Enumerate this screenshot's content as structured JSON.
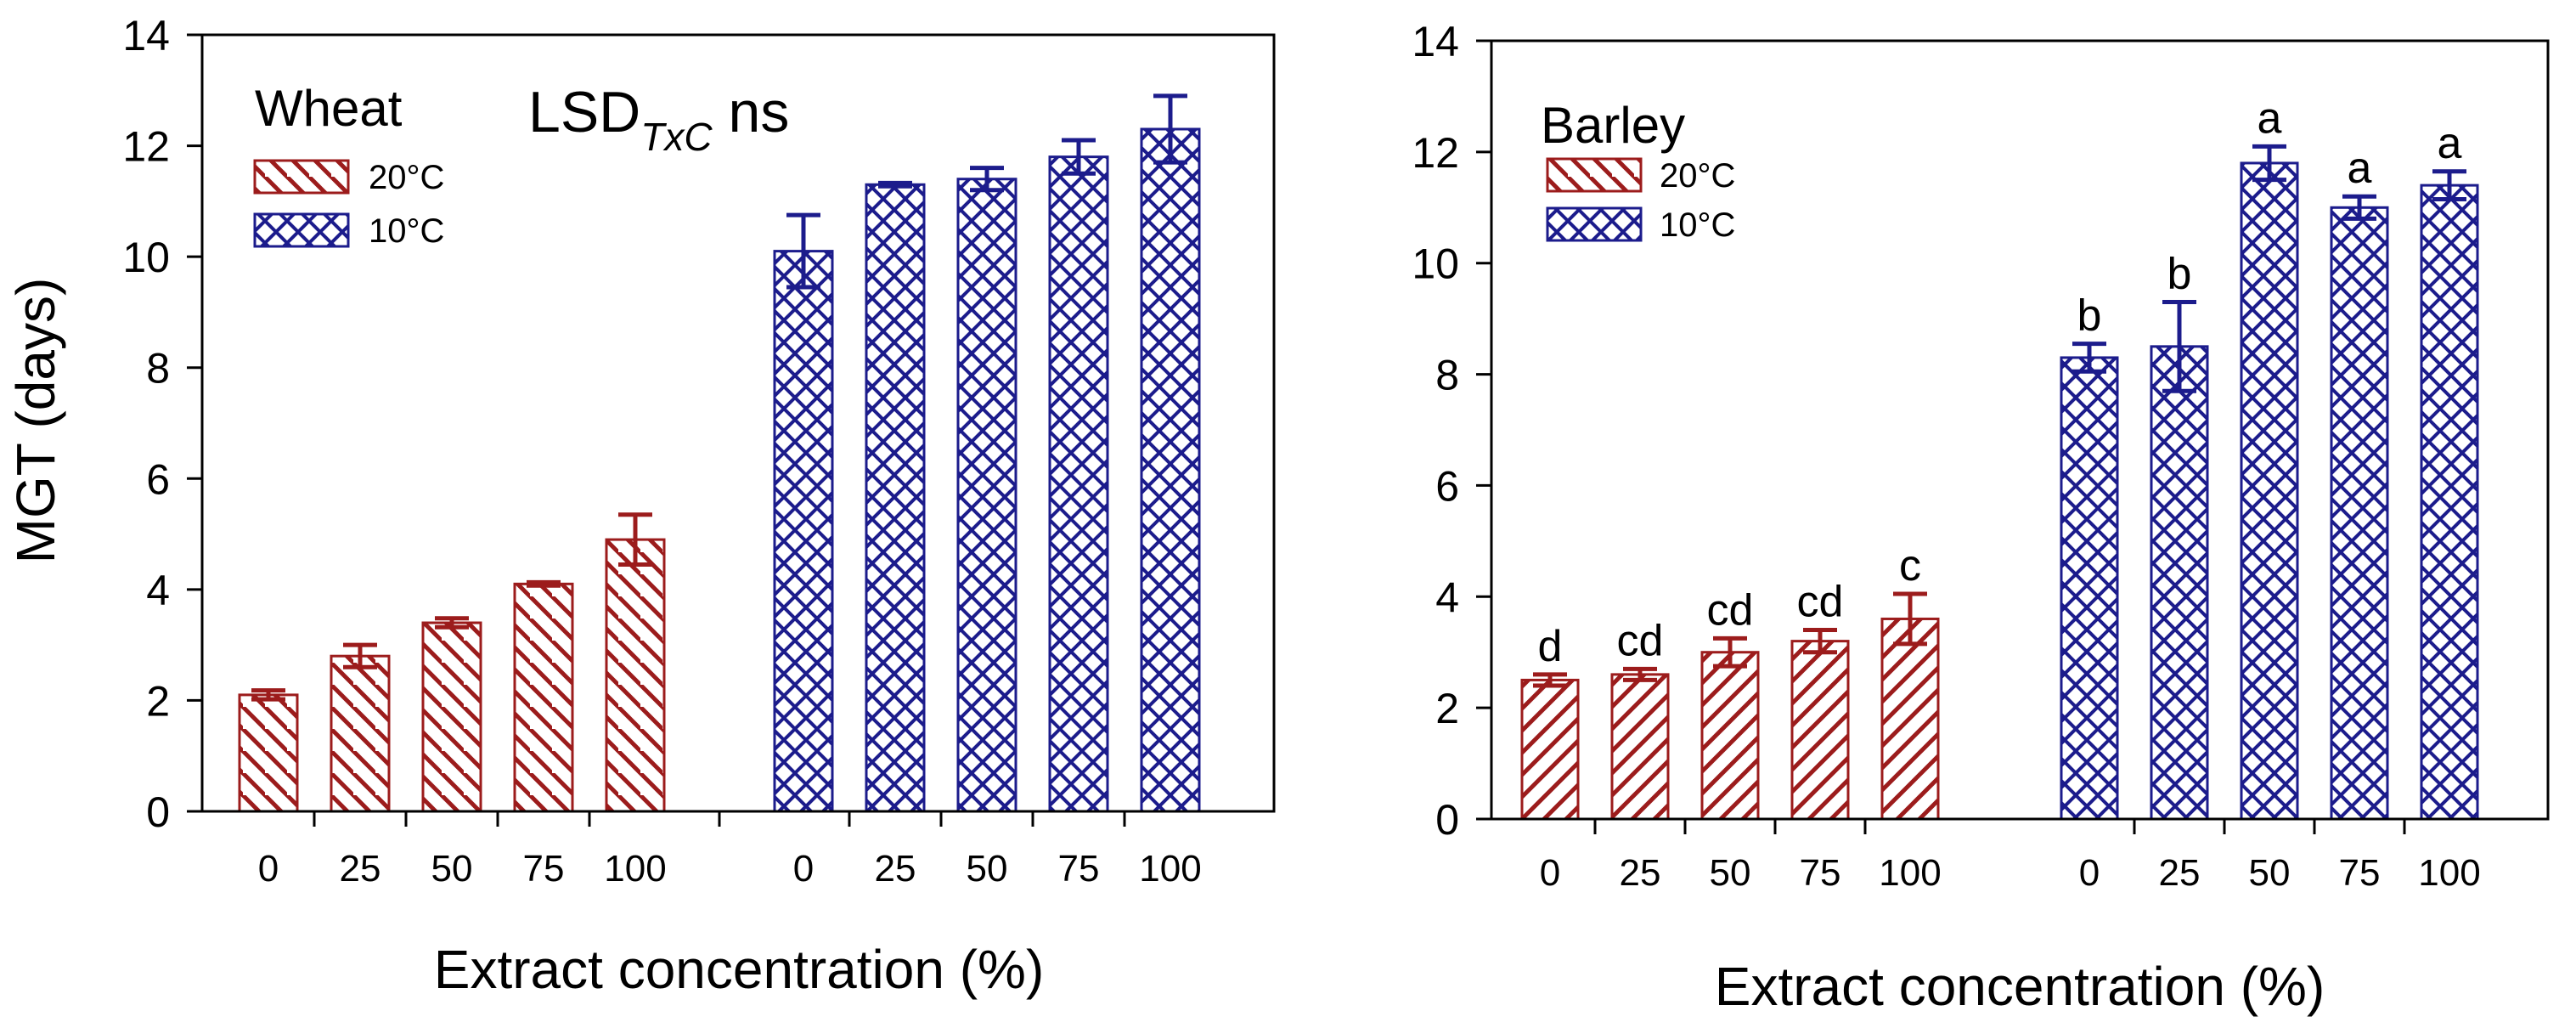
{
  "colors": {
    "warm": "#9c1c1c",
    "cold": "#1c1c8c",
    "axis": "#000000"
  },
  "shared": {
    "ylabel": "MGT (days)",
    "ylim": [
      0,
      14
    ],
    "yticks": [
      "0",
      "2",
      "4",
      "6",
      "8",
      "10",
      "12",
      "14"
    ],
    "legend": [
      "20°C",
      "10°C"
    ]
  },
  "chart_data": [
    {
      "type": "bar",
      "panel": "Wheat",
      "title": "Wheat",
      "annotation": {
        "prefix": "LSD",
        "subscript": "TxC",
        "suffix": " ns"
      },
      "xlabel": "Extract concentration (%)",
      "ylabel": "MGT (days)",
      "ylim": [
        0,
        14
      ],
      "categories": [
        "0",
        "25",
        "50",
        "75",
        "100"
      ],
      "series": [
        {
          "name": "20°C",
          "values": [
            2.1,
            2.8,
            3.4,
            4.1,
            4.9
          ],
          "errors": [
            0.08,
            0.2,
            0.08,
            0.03,
            0.45
          ],
          "letters": []
        },
        {
          "name": "10°C",
          "values": [
            10.1,
            11.3,
            11.4,
            11.8,
            12.3
          ],
          "errors": [
            0.65,
            0.03,
            0.2,
            0.3,
            0.6
          ],
          "letters": []
        }
      ]
    },
    {
      "type": "bar",
      "panel": "Barley",
      "title": "Barley",
      "xlabel": "Extract concentration (%)",
      "ylabel": "",
      "ylim": [
        0,
        14
      ],
      "categories": [
        "0",
        "25",
        "50",
        "75",
        "100"
      ],
      "series": [
        {
          "name": "20°C",
          "values": [
            2.5,
            2.6,
            3.0,
            3.2,
            3.6
          ],
          "errors": [
            0.1,
            0.1,
            0.25,
            0.2,
            0.45
          ],
          "letters": [
            "d",
            "cd",
            "cd",
            "cd",
            "c"
          ]
        },
        {
          "name": "10°C",
          "values": [
            8.3,
            8.5,
            11.8,
            11.0,
            11.4
          ],
          "errors": [
            0.25,
            0.8,
            0.3,
            0.2,
            0.25
          ],
          "letters": [
            "b",
            "b",
            "a",
            "a",
            "a"
          ]
        }
      ]
    }
  ]
}
